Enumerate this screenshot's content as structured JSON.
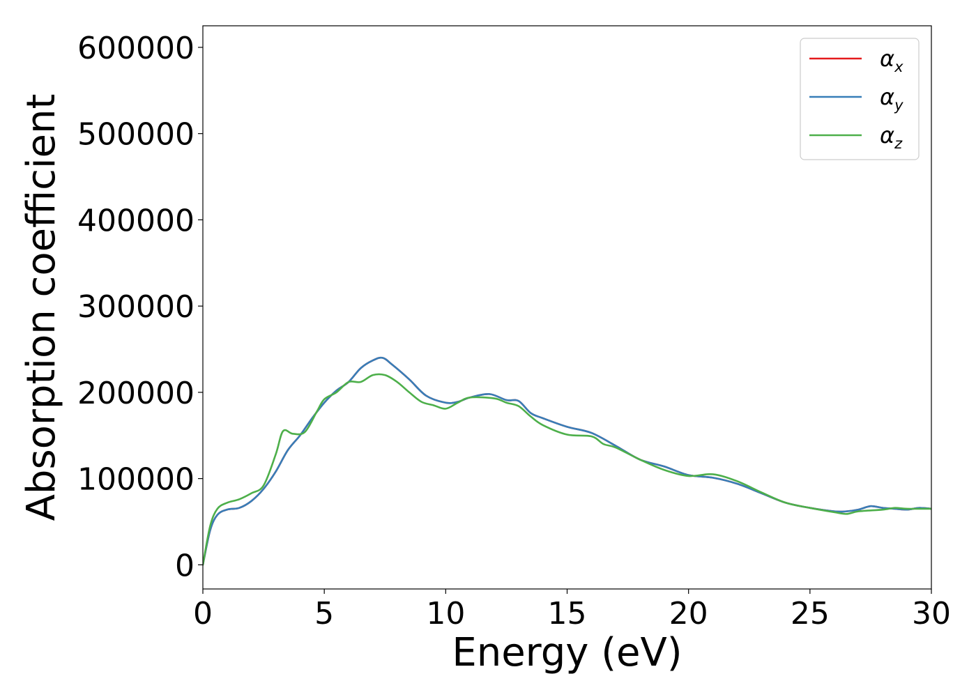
{
  "chart_data": {
    "type": "line",
    "title": "",
    "xlabel": "Energy (eV)",
    "ylabel": "Absorption coefficient",
    "xlim": [
      0,
      30
    ],
    "ylim": [
      -28000,
      625000
    ],
    "x_ticks": [
      "0",
      "5",
      "10",
      "15",
      "20",
      "25",
      "30"
    ],
    "y_ticks": [
      "0",
      "100000",
      "200000",
      "300000",
      "400000",
      "500000",
      "600000"
    ],
    "x_tick_values": [
      0,
      5,
      10,
      15,
      20,
      25,
      30
    ],
    "y_tick_values": [
      0,
      100000,
      200000,
      300000,
      400000,
      500000,
      600000
    ],
    "grid": false,
    "legend_position": "top-right",
    "series": [
      {
        "name": "αx",
        "symbol": "α",
        "subscript": "x",
        "color": "#e41a1c",
        "x": [
          0,
          0.3,
          0.6,
          1.0,
          1.5,
          2.0,
          2.5,
          3.0,
          3.5,
          4.0,
          4.5,
          5.0,
          5.5,
          6.0,
          6.5,
          7.0,
          7.4,
          7.8,
          8.5,
          9.2,
          10.0,
          10.5,
          11.0,
          11.8,
          12.5,
          13.0,
          13.5,
          14.0,
          15.0,
          16.0,
          17.0,
          18.0,
          19.0,
          20.0,
          21.0,
          22.0,
          23.0,
          24.0,
          25.0,
          26.0,
          26.5,
          27.0,
          27.5,
          28.0,
          28.5,
          29.0,
          29.5,
          30.0
        ],
        "y": [
          0,
          40000,
          58000,
          64000,
          66000,
          74000,
          88000,
          108000,
          133000,
          150000,
          170000,
          188000,
          202000,
          212000,
          228000,
          237000,
          240000,
          232000,
          215000,
          196000,
          188000,
          189000,
          194000,
          198000,
          191000,
          190000,
          176000,
          170000,
          160000,
          153000,
          138000,
          122000,
          114000,
          104000,
          101000,
          94000,
          83000,
          72000,
          66000,
          62000,
          62000,
          64000,
          68000,
          66000,
          65000,
          64000,
          66000,
          65000
        ]
      },
      {
        "name": "αy",
        "symbol": "α",
        "subscript": "y",
        "color": "#377eb8",
        "x": [
          0,
          0.3,
          0.6,
          1.0,
          1.5,
          2.0,
          2.5,
          3.0,
          3.5,
          4.0,
          4.5,
          5.0,
          5.5,
          6.0,
          6.5,
          7.0,
          7.4,
          7.8,
          8.5,
          9.2,
          10.0,
          10.5,
          11.0,
          11.8,
          12.5,
          13.0,
          13.5,
          14.0,
          15.0,
          16.0,
          17.0,
          18.0,
          19.0,
          20.0,
          21.0,
          22.0,
          23.0,
          24.0,
          25.0,
          26.0,
          26.5,
          27.0,
          27.5,
          28.0,
          28.5,
          29.0,
          29.5,
          30.0
        ],
        "y": [
          0,
          40000,
          58000,
          64000,
          66000,
          74000,
          88000,
          108000,
          133000,
          150000,
          170000,
          188000,
          202000,
          212000,
          228000,
          237000,
          240000,
          232000,
          215000,
          196000,
          188000,
          189000,
          194000,
          198000,
          191000,
          190000,
          176000,
          170000,
          160000,
          153000,
          138000,
          122000,
          114000,
          104000,
          101000,
          94000,
          83000,
          72000,
          66000,
          62000,
          62000,
          64000,
          68000,
          66000,
          65000,
          64000,
          66000,
          65000
        ]
      },
      {
        "name": "αz",
        "symbol": "α",
        "subscript": "z",
        "color": "#4daf4a",
        "x": [
          0,
          0.3,
          0.6,
          1.0,
          1.5,
          2.0,
          2.5,
          3.0,
          3.3,
          3.7,
          4.2,
          4.7,
          5.0,
          5.5,
          6.0,
          6.5,
          7.0,
          7.5,
          8.0,
          8.5,
          9.0,
          9.5,
          10.0,
          10.5,
          11.0,
          12.0,
          12.5,
          13.0,
          13.5,
          14.0,
          15.0,
          16.0,
          16.5,
          17.0,
          18.0,
          19.0,
          20.0,
          21.0,
          22.0,
          23.0,
          24.0,
          25.0,
          26.0,
          26.5,
          27.0,
          28.0,
          28.5,
          29.0,
          30.0
        ],
        "y": [
          0,
          45000,
          65000,
          72000,
          76000,
          83000,
          92000,
          128000,
          155000,
          152000,
          154000,
          178000,
          192000,
          200000,
          212000,
          212000,
          220000,
          220000,
          212000,
          200000,
          189000,
          185000,
          181000,
          188000,
          194000,
          193000,
          188000,
          184000,
          172000,
          162000,
          151000,
          149000,
          140000,
          136000,
          122000,
          110000,
          103000,
          105000,
          97000,
          84000,
          72000,
          66000,
          61000,
          59000,
          62000,
          64000,
          66000,
          65000,
          65000
        ]
      }
    ]
  }
}
